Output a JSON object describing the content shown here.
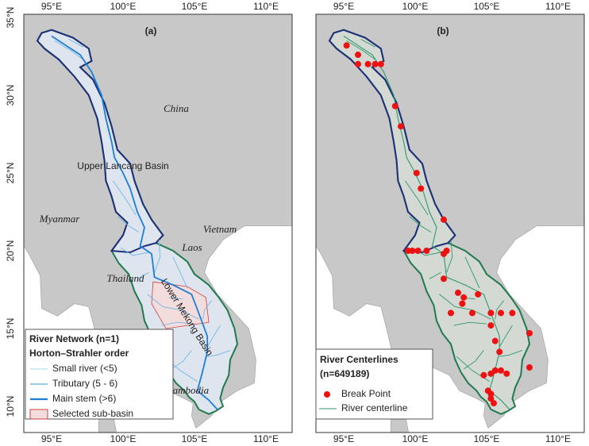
{
  "axes": {
    "lon_ticks": [
      "95°E",
      "100°E",
      "105°E",
      "110°E"
    ],
    "lat_ticks": [
      "35°N",
      "30°N",
      "25°N",
      "20°N",
      "15°N",
      "10°N"
    ]
  },
  "panels": [
    {
      "label": "(a)",
      "place_labels": [
        "China",
        "Upper Lancang Basin",
        "Myanmar",
        "Vietnam",
        "Laos",
        "Thailand",
        "Lower Mekong Basin",
        "Cambodia"
      ],
      "legend": {
        "title": "River Network (n=1)",
        "subtitle": "Horton–Strahler order",
        "items": [
          "Small river (<5)",
          "Tributary (5 - 6)",
          "Main stem (>6)",
          "Selected sub-basin"
        ]
      }
    },
    {
      "label": "(b)",
      "legend": {
        "title": "River Centerlines",
        "subtitle": "(n=649189)",
        "items": [
          "Break Point",
          "River centerline"
        ]
      }
    }
  ]
}
